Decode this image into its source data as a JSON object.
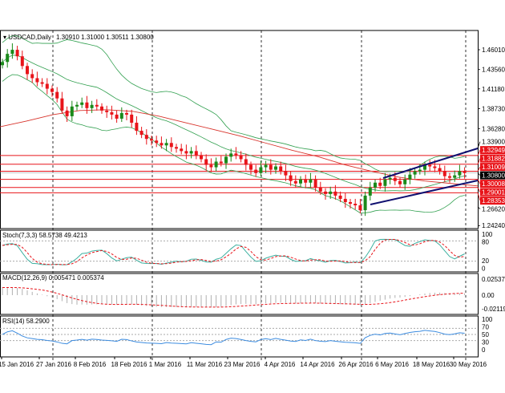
{
  "symbol_title": "USDCAD,Daily",
  "ohlc_readout": "1.30910 1.31000 1.30511 1.30800",
  "price_axis": [
    "1.46010",
    "1.43560",
    "1.41180",
    "1.38730",
    "1.36280",
    "1.33900",
    "1.26620",
    "1.24240"
  ],
  "levels": [
    "1.32949",
    "1.31882",
    "1.31009",
    "1.30008",
    "1.29001",
    "1.28353"
  ],
  "current_price": "1.30800",
  "stoch": {
    "label": "Stoch(7,3,3) 58.5738 49.4213",
    "ticks": [
      "100",
      "80",
      "20",
      "0"
    ]
  },
  "macd": {
    "label": "MACD(12,26,9) 0.005471 0.005374",
    "ticks": [
      "0.025378",
      "0.00",
      "-0.021199"
    ]
  },
  "rsi": {
    "label": "RSI(14) 58.2900",
    "ticks": [
      "100",
      "70",
      "50",
      "30",
      "0"
    ]
  },
  "dates": [
    "15 Jan 2016",
    "27 Jan 2016",
    "8 Feb 2016",
    "18 Feb 2016",
    "1 Mar 2016",
    "11 Mar 2016",
    "23 Mar 2016",
    "4 Apr 2016",
    "14 Apr 2016",
    "26 Apr 2016",
    "6 May 2016",
    "18 May 2016",
    "30 May 2016"
  ],
  "colors": {
    "bull": "#1a8a1a",
    "bear": "#e8141a",
    "band": "#32a050",
    "ma": "#d8342c",
    "level": "#e8141a",
    "channel": "#101070"
  },
  "chart_data": {
    "type": "candlestick",
    "closes": [
      1.445,
      1.455,
      1.46,
      1.452,
      1.44,
      1.43,
      1.425,
      1.42,
      1.418,
      1.412,
      1.408,
      1.4,
      1.385,
      1.378,
      1.39,
      1.392,
      1.395,
      1.388,
      1.392,
      1.39,
      1.385,
      1.383,
      1.38,
      1.375,
      1.382,
      1.38,
      1.37,
      1.36,
      1.355,
      1.35,
      1.348,
      1.345,
      1.342,
      1.345,
      1.34,
      1.338,
      1.335,
      1.332,
      1.335,
      1.33,
      1.325,
      1.318,
      1.315,
      1.322,
      1.32,
      1.328,
      1.332,
      1.33,
      1.325,
      1.318,
      1.312,
      1.308,
      1.315,
      1.318,
      1.312,
      1.316,
      1.31,
      1.305,
      1.298,
      1.295,
      1.3,
      1.296,
      1.3,
      1.29,
      1.285,
      1.282,
      1.285,
      1.28,
      1.276,
      1.272,
      1.27,
      1.268,
      1.262,
      1.28,
      1.29,
      1.296,
      1.292,
      1.3,
      1.302,
      1.298,
      1.294,
      1.3,
      1.306,
      1.31,
      1.312,
      1.318,
      1.316,
      1.314,
      1.31,
      1.304,
      1.302,
      1.305,
      1.31,
      1.308
    ],
    "ma_red": [
      1.365,
      1.372,
      1.38,
      1.385,
      1.386,
      1.384,
      1.378,
      1.37,
      1.362,
      1.354,
      1.345,
      1.336,
      1.328,
      1.318,
      1.31,
      1.303,
      1.298,
      1.295,
      1.292
    ],
    "price_range": [
      1.2424,
      1.4601
    ]
  }
}
